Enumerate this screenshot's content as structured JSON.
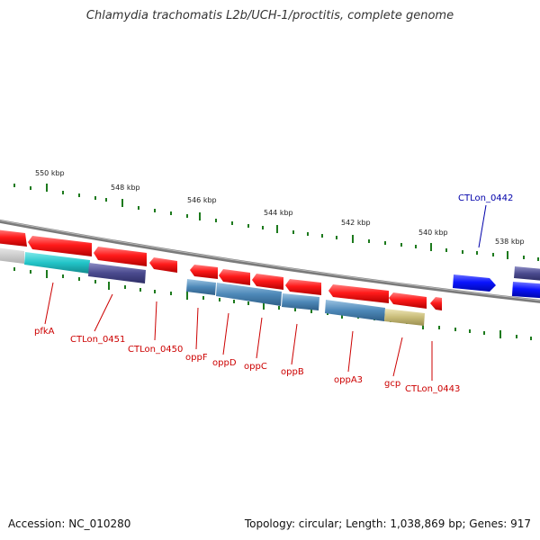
{
  "title": "Chlamydia trachomatis L2b/UCH-1/proctitis, complete genome",
  "footer": {
    "accession": "Accession: NC_010280",
    "topology": "Topology: circular; Length: 1,038,869 bp; Genes: 917"
  },
  "colors": {
    "gene_red": "#ff1a1a",
    "gene_blue": "#0a14ff",
    "label_red": "#cc0000",
    "label_blue": "#0000aa",
    "tick_green": "#1d7a1d",
    "backbone": "#7a7a7a",
    "cog_cyan": "#22c4c8",
    "cog_navy": "#4a4a8e",
    "cog_steel": "#4d88b8",
    "cog_khaki": "#c8bc78"
  },
  "scale_labels": [
    "550 kbp",
    "548 kbp",
    "546 kbp",
    "544 kbp",
    "542 kbp",
    "540 kbp",
    "538 kbp"
  ],
  "gene_labels": [
    {
      "name": "pfkA",
      "color": "red"
    },
    {
      "name": "CTLon_0451",
      "color": "red"
    },
    {
      "name": "CTLon_0450",
      "color": "red"
    },
    {
      "name": "oppF",
      "color": "red"
    },
    {
      "name": "oppD",
      "color": "red"
    },
    {
      "name": "oppC",
      "color": "red"
    },
    {
      "name": "oppB",
      "color": "red"
    },
    {
      "name": "oppA3",
      "color": "red"
    },
    {
      "name": "gcp",
      "color": "red"
    },
    {
      "name": "CTLon_0443",
      "color": "red"
    },
    {
      "name": "CTLon_0442",
      "color": "blue"
    }
  ]
}
